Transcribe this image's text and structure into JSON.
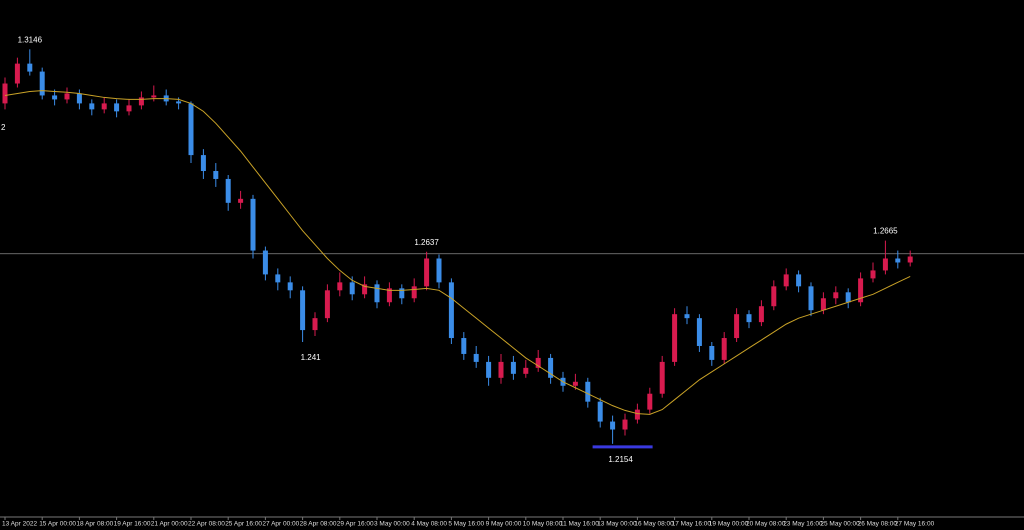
{
  "chart_data": {
    "type": "candlestick",
    "categories": [
      "13 Apr 2022",
      null,
      null,
      "15 Apr 00:00",
      null,
      null,
      "18 Apr 08:00",
      null,
      null,
      "19 Apr 16:00",
      null,
      null,
      "21 Apr 00:00",
      null,
      null,
      "22 Apr 08:00",
      null,
      null,
      "25 Apr 16:00",
      null,
      null,
      "27 Apr 00:00",
      null,
      null,
      "28 Apr 08:00",
      null,
      null,
      "29 Apr 16:00",
      null,
      null,
      "3 May 00:00",
      null,
      null,
      "4 May 08:00",
      null,
      null,
      "5 May 16:00",
      null,
      null,
      "9 May 00:00",
      null,
      null,
      "10 May 08:00",
      null,
      null,
      "11 May 16:00",
      null,
      null,
      "13 May 00:00",
      null,
      null,
      "16 May 08:00",
      null,
      null,
      "17 May 16:00",
      null,
      null,
      "19 May 00:00",
      null,
      null,
      "20 May 08:00",
      null,
      null,
      "23 May 16:00",
      null,
      null,
      "25 May 00:00",
      null,
      null,
      "26 May 08:00",
      null,
      null,
      "27 May 16:00",
      null
    ],
    "open": [
      1.301,
      1.306,
      1.311,
      1.309,
      1.303,
      1.302,
      1.3035,
      1.301,
      1.2995,
      1.301,
      1.299,
      1.3005,
      1.3025,
      1.303,
      1.3015,
      1.301,
      1.288,
      1.284,
      1.282,
      1.276,
      1.277,
      1.264,
      1.258,
      1.256,
      1.254,
      1.244,
      1.247,
      1.254,
      1.256,
      1.253,
      1.2555,
      1.251,
      1.2545,
      1.252,
      1.255,
      1.262,
      1.256,
      1.242,
      1.238,
      1.236,
      1.232,
      1.236,
      1.233,
      1.2345,
      1.237,
      1.232,
      1.23,
      1.231,
      1.226,
      1.221,
      1.219,
      1.2215,
      1.224,
      1.228,
      1.236,
      1.248,
      1.247,
      1.24,
      1.2365,
      1.242,
      1.248,
      1.246,
      1.25,
      1.255,
      1.258,
      1.255,
      1.249,
      1.252,
      1.2535,
      1.251,
      1.257,
      1.259,
      1.262,
      1.261
    ],
    "high": [
      1.3075,
      1.3125,
      1.3146,
      1.31,
      1.3045,
      1.305,
      1.3045,
      1.302,
      1.3025,
      1.302,
      1.302,
      1.304,
      1.3055,
      1.3045,
      1.3025,
      1.3015,
      1.2895,
      1.286,
      1.283,
      1.279,
      1.278,
      1.265,
      1.2595,
      1.2575,
      1.255,
      1.2485,
      1.2555,
      1.2585,
      1.2575,
      1.2575,
      1.2565,
      1.256,
      1.2555,
      1.257,
      1.2637,
      1.263,
      1.257,
      1.2435,
      1.24,
      1.2375,
      1.238,
      1.2375,
      1.2365,
      1.239,
      1.238,
      1.2335,
      1.233,
      1.232,
      1.227,
      1.2225,
      1.223,
      1.2255,
      1.2295,
      1.2375,
      1.2495,
      1.25,
      1.248,
      1.241,
      1.2435,
      1.2495,
      1.249,
      1.2515,
      1.2565,
      1.2595,
      1.259,
      1.256,
      1.2535,
      1.255,
      1.2545,
      1.2585,
      1.261,
      1.2665,
      1.264,
      1.264
    ],
    "low": [
      1.2995,
      1.305,
      1.308,
      1.302,
      1.3005,
      1.301,
      1.2995,
      1.298,
      1.2985,
      1.2975,
      1.298,
      1.2995,
      1.3015,
      1.3005,
      1.2995,
      1.286,
      1.282,
      1.28,
      1.274,
      1.2745,
      1.262,
      1.2565,
      1.254,
      1.252,
      1.241,
      1.2425,
      1.246,
      1.2525,
      1.2515,
      1.252,
      1.2495,
      1.25,
      1.2505,
      1.251,
      1.254,
      1.2545,
      1.2405,
      1.2365,
      1.2345,
      1.23,
      1.2305,
      1.2315,
      1.232,
      1.2335,
      1.2305,
      1.2285,
      1.229,
      1.2245,
      1.2195,
      1.2154,
      1.2175,
      1.2205,
      1.223,
      1.227,
      1.235,
      1.2455,
      1.2385,
      1.235,
      1.2355,
      1.241,
      1.2445,
      1.245,
      1.249,
      1.254,
      1.2535,
      1.2475,
      1.248,
      1.2505,
      1.2495,
      1.25,
      1.256,
      1.258,
      1.2595,
      1.26
    ],
    "close": [
      1.306,
      1.311,
      1.309,
      1.303,
      1.302,
      1.3035,
      1.301,
      1.2995,
      1.301,
      1.299,
      1.3005,
      1.3025,
      1.303,
      1.3015,
      1.301,
      1.288,
      1.284,
      1.282,
      1.276,
      1.277,
      1.264,
      1.258,
      1.256,
      1.254,
      1.244,
      1.247,
      1.254,
      1.256,
      1.253,
      1.2555,
      1.251,
      1.2545,
      1.252,
      1.255,
      1.262,
      1.256,
      1.242,
      1.238,
      1.236,
      1.232,
      1.236,
      1.233,
      1.2345,
      1.237,
      1.232,
      1.23,
      1.231,
      1.226,
      1.221,
      1.219,
      1.2215,
      1.224,
      1.228,
      1.236,
      1.248,
      1.247,
      1.24,
      1.2365,
      1.242,
      1.248,
      1.246,
      1.25,
      1.255,
      1.258,
      1.255,
      1.249,
      1.252,
      1.2535,
      1.251,
      1.257,
      1.259,
      1.262,
      1.261,
      1.2625
    ],
    "up_color": "#d81b4f",
    "down_color": "#3b8de8",
    "moving_average": {
      "color": "#c9a227",
      "values": [
        1.303,
        1.3035,
        1.304,
        1.3042,
        1.304,
        1.3038,
        1.3035,
        1.303,
        1.3025,
        1.3022,
        1.302,
        1.302,
        1.3022,
        1.3022,
        1.302,
        1.301,
        1.299,
        1.296,
        1.2925,
        1.289,
        1.285,
        1.281,
        1.277,
        1.273,
        1.269,
        1.2655,
        1.262,
        1.259,
        1.2565,
        1.255,
        1.2545,
        1.254,
        1.254,
        1.2542,
        1.2545,
        1.254,
        1.252,
        1.2495,
        1.247,
        1.2445,
        1.242,
        1.2395,
        1.237,
        1.235,
        1.233,
        1.231,
        1.2295,
        1.228,
        1.2265,
        1.225,
        1.2238,
        1.223,
        1.2228,
        1.224,
        1.2265,
        1.229,
        1.2315,
        1.2335,
        1.2355,
        1.2375,
        1.2395,
        1.2415,
        1.2435,
        1.2455,
        1.247,
        1.248,
        1.249,
        1.25,
        1.251,
        1.252,
        1.253,
        1.2545,
        1.256,
        1.2575
      ]
    },
    "price_line": {
      "value": 1.2632,
      "color": "#8a8a8a"
    },
    "low_marker_color": "#3a3ae0",
    "left_label": "2",
    "ylim": [
      1.197,
      1.327
    ]
  }
}
